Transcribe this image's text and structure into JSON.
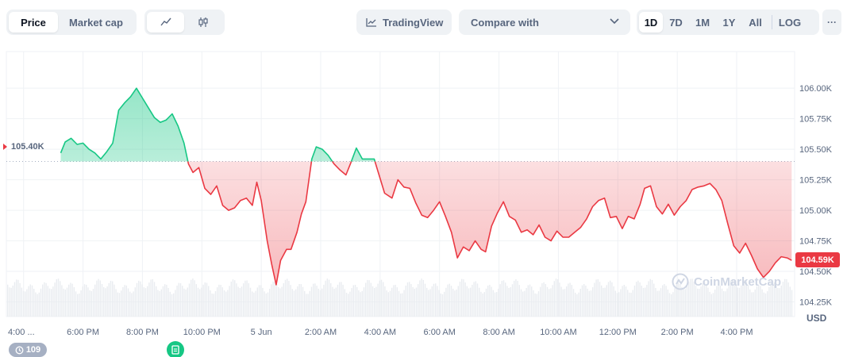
{
  "toolbar": {
    "metric_tabs": [
      {
        "label": "Price",
        "active": true
      },
      {
        "label": "Market cap",
        "active": false
      }
    ],
    "chart_type_icons": [
      "line-chart-icon",
      "candlestick-icon"
    ],
    "tradingview_label": "TradingView",
    "compare_placeholder": "Compare with",
    "ranges": [
      "1D",
      "7D",
      "1M",
      "1Y",
      "All"
    ],
    "active_range": "1D",
    "log_label": "LOG",
    "more_label": "···"
  },
  "chart_data": {
    "type": "area",
    "title": "",
    "currency_label": "USD",
    "y_ticks": [
      "106.00K",
      "105.75K",
      "105.50K",
      "105.25K",
      "105.00K",
      "104.75K",
      "104.50K",
      "104.25K"
    ],
    "y_tick_values": [
      106.0,
      105.75,
      105.5,
      105.25,
      105.0,
      104.75,
      104.5,
      104.25
    ],
    "ylim": [
      104.13,
      106.3
    ],
    "x_ticks": [
      "4:00 ...",
      "6:00 PM",
      "8:00 PM",
      "10:00 PM",
      "5 Jun",
      "2:00 AM",
      "4:00 AM",
      "6:00 AM",
      "8:00 AM",
      "10:00 AM",
      "12:00 PM",
      "2:00 PM",
      "4:00 PM"
    ],
    "x_tick_hours": [
      16,
      18,
      20,
      22,
      24,
      26,
      28,
      30,
      32,
      34,
      36,
      38,
      40
    ],
    "x_unit": "hours since 00:00 on 4 Jun",
    "baseline_value": 105.4,
    "baseline_label": "105.40K",
    "current_value": 104.59,
    "current_label": "104.59K",
    "colors": {
      "up": "#16c784",
      "down": "#ea3943",
      "grid": "#eff2f5",
      "axis_text": "#58667e"
    },
    "series": [
      {
        "name": "",
        "points": [
          [
            17.25,
            105.47
          ],
          [
            17.4,
            105.56
          ],
          [
            17.6,
            105.59
          ],
          [
            17.8,
            105.54
          ],
          [
            18.0,
            105.55
          ],
          [
            18.2,
            105.5
          ],
          [
            18.4,
            105.47
          ],
          [
            18.6,
            105.42
          ],
          [
            18.8,
            105.48
          ],
          [
            19.0,
            105.55
          ],
          [
            19.2,
            105.82
          ],
          [
            19.4,
            105.88
          ],
          [
            19.6,
            105.93
          ],
          [
            19.8,
            106.0
          ],
          [
            20.0,
            105.92
          ],
          [
            20.2,
            105.84
          ],
          [
            20.4,
            105.76
          ],
          [
            20.6,
            105.72
          ],
          [
            20.8,
            105.74
          ],
          [
            21.0,
            105.79
          ],
          [
            21.2,
            105.69
          ],
          [
            21.4,
            105.55
          ],
          [
            21.55,
            105.38
          ],
          [
            21.7,
            105.31
          ],
          [
            21.9,
            105.35
          ],
          [
            22.1,
            105.18
          ],
          [
            22.3,
            105.13
          ],
          [
            22.5,
            105.2
          ],
          [
            22.7,
            105.04
          ],
          [
            22.9,
            105.0
          ],
          [
            23.1,
            105.02
          ],
          [
            23.3,
            105.08
          ],
          [
            23.5,
            105.1
          ],
          [
            23.7,
            105.04
          ],
          [
            23.85,
            105.23
          ],
          [
            24.0,
            105.08
          ],
          [
            24.2,
            104.75
          ],
          [
            24.35,
            104.56
          ],
          [
            24.5,
            104.39
          ],
          [
            24.65,
            104.59
          ],
          [
            24.85,
            104.68
          ],
          [
            25.0,
            104.68
          ],
          [
            25.2,
            104.82
          ],
          [
            25.35,
            104.97
          ],
          [
            25.5,
            105.07
          ],
          [
            25.7,
            105.42
          ],
          [
            25.85,
            105.52
          ],
          [
            26.05,
            105.5
          ],
          [
            26.25,
            105.45
          ],
          [
            26.45,
            105.38
          ],
          [
            26.65,
            105.33
          ],
          [
            26.85,
            105.29
          ],
          [
            27.0,
            105.38
          ],
          [
            27.2,
            105.51
          ],
          [
            27.4,
            105.42
          ],
          [
            27.6,
            105.42
          ],
          [
            27.8,
            105.42
          ],
          [
            27.95,
            105.3
          ],
          [
            28.15,
            105.14
          ],
          [
            28.4,
            105.1
          ],
          [
            28.6,
            105.25
          ],
          [
            28.8,
            105.19
          ],
          [
            29.0,
            105.18
          ],
          [
            29.2,
            105.06
          ],
          [
            29.4,
            104.96
          ],
          [
            29.6,
            104.94
          ],
          [
            29.8,
            105.0
          ],
          [
            30.0,
            105.07
          ],
          [
            30.2,
            104.95
          ],
          [
            30.4,
            104.82
          ],
          [
            30.6,
            104.61
          ],
          [
            30.8,
            104.7
          ],
          [
            31.0,
            104.67
          ],
          [
            31.2,
            104.75
          ],
          [
            31.4,
            104.68
          ],
          [
            31.55,
            104.66
          ],
          [
            31.75,
            104.87
          ],
          [
            31.95,
            104.98
          ],
          [
            32.15,
            105.07
          ],
          [
            32.35,
            104.95
          ],
          [
            32.55,
            104.92
          ],
          [
            32.75,
            104.82
          ],
          [
            32.95,
            104.84
          ],
          [
            33.15,
            104.8
          ],
          [
            33.35,
            104.88
          ],
          [
            33.55,
            104.78
          ],
          [
            33.75,
            104.75
          ],
          [
            33.95,
            104.83
          ],
          [
            34.15,
            104.78
          ],
          [
            34.35,
            104.78
          ],
          [
            34.55,
            104.82
          ],
          [
            34.75,
            104.86
          ],
          [
            34.95,
            104.93
          ],
          [
            35.15,
            105.03
          ],
          [
            35.35,
            105.08
          ],
          [
            35.55,
            105.1
          ],
          [
            35.75,
            104.94
          ],
          [
            35.95,
            104.95
          ],
          [
            36.15,
            104.85
          ],
          [
            36.35,
            104.95
          ],
          [
            36.55,
            104.93
          ],
          [
            36.75,
            105.05
          ],
          [
            36.9,
            105.18
          ],
          [
            37.1,
            105.2
          ],
          [
            37.3,
            105.03
          ],
          [
            37.5,
            104.97
          ],
          [
            37.7,
            105.05
          ],
          [
            37.9,
            104.96
          ],
          [
            38.1,
            105.03
          ],
          [
            38.3,
            105.08
          ],
          [
            38.5,
            105.17
          ],
          [
            38.7,
            105.19
          ],
          [
            38.9,
            105.2
          ],
          [
            39.1,
            105.22
          ],
          [
            39.3,
            105.17
          ],
          [
            39.5,
            105.08
          ],
          [
            39.7,
            104.89
          ],
          [
            39.9,
            104.71
          ],
          [
            40.1,
            104.65
          ],
          [
            40.3,
            104.73
          ],
          [
            40.5,
            104.63
          ],
          [
            40.7,
            104.52
          ],
          [
            40.9,
            104.45
          ],
          [
            41.1,
            104.5
          ],
          [
            41.3,
            104.57
          ],
          [
            41.5,
            104.62
          ],
          [
            41.7,
            104.61
          ],
          [
            41.85,
            104.59
          ]
        ]
      }
    ],
    "volume_bars": true,
    "watermark": "CoinMarketCap",
    "event_badge": "109"
  }
}
